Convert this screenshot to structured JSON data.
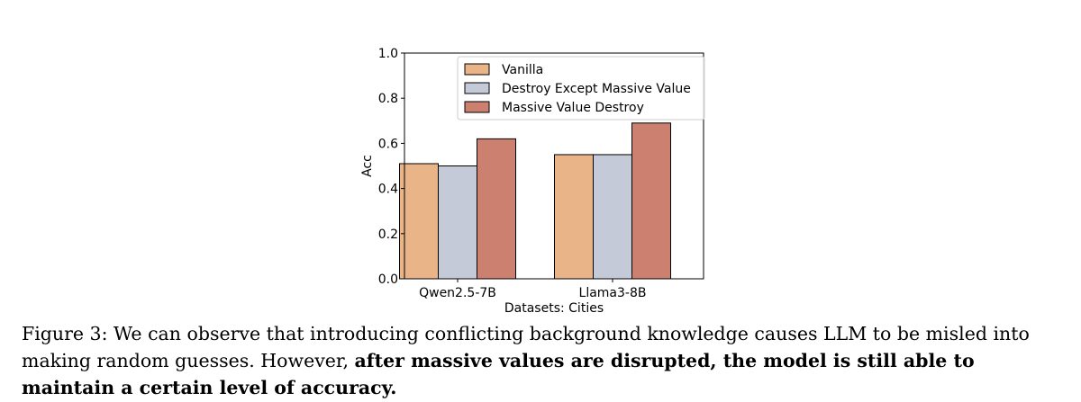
{
  "chart_data": {
    "type": "bar",
    "title": "",
    "xlabel": "Datasets: Cities",
    "ylabel": "Acc",
    "ylim": [
      0.0,
      1.0
    ],
    "yticks": [
      "0.0",
      "0.2",
      "0.4",
      "0.6",
      "0.8",
      "1.0"
    ],
    "categories": [
      "Qwen2.5-7B",
      "Llama3-8B"
    ],
    "series": [
      {
        "name": "Vanilla",
        "color": "#e8b488",
        "values": [
          0.51,
          0.55
        ]
      },
      {
        "name": "Destroy Except Massive Value",
        "color": "#c5cad8",
        "values": [
          0.5,
          0.55
        ]
      },
      {
        "name": "Massive Value Destroy",
        "color": "#cb8070",
        "values": [
          0.62,
          0.69
        ]
      }
    ],
    "legend_position": "top-center",
    "grid": false
  },
  "caption": {
    "prefix": "Figure 3: We can observe that introducing conflicting background knowledge causes LLM to be misled into making random guesses. However, ",
    "bold": "after massive values are disrupted, the model is still able to maintain a certain level of accuracy."
  }
}
